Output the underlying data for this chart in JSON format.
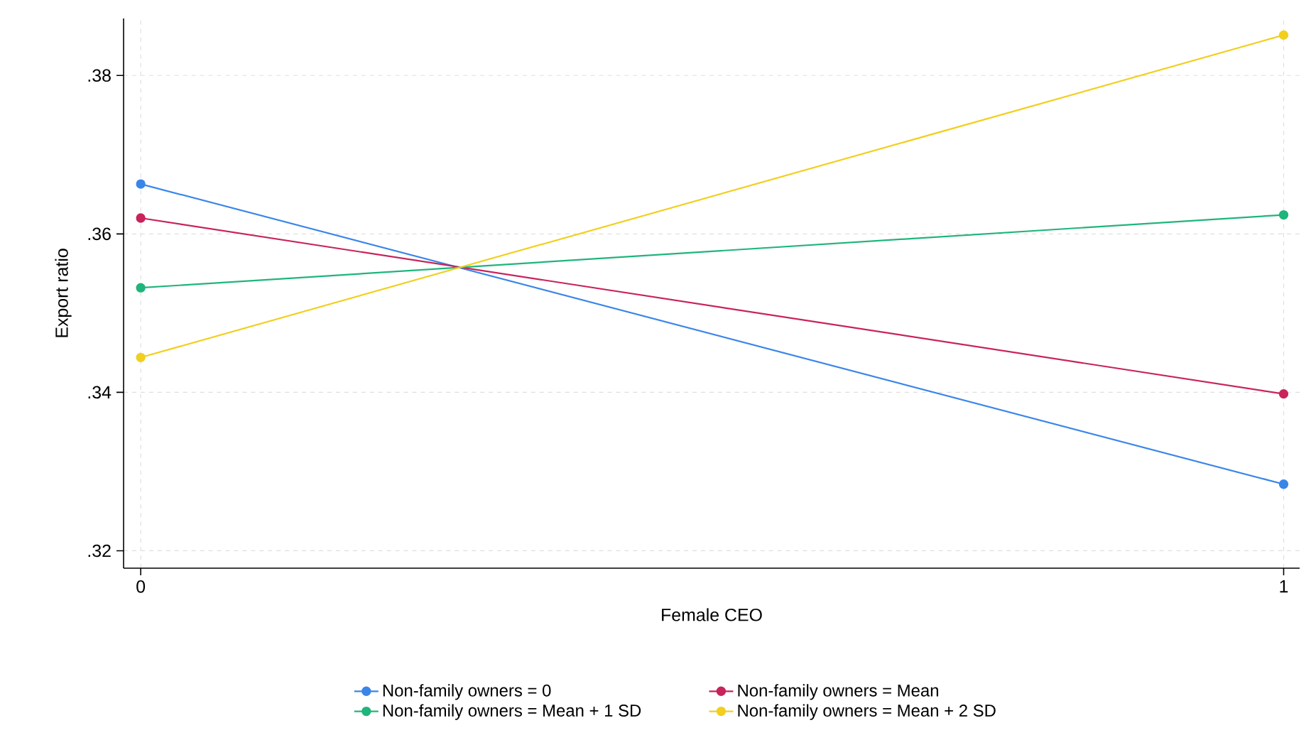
{
  "chart_data": {
    "type": "line",
    "xlabel": "Female CEO",
    "ylabel": "Export ratio",
    "x": [
      0,
      1
    ],
    "series": [
      {
        "name": "Non-family owners = 0",
        "color": "#3a86e8",
        "values": [
          0.3663,
          0.3284
        ]
      },
      {
        "name": "Non-family owners = Mean",
        "color": "#c8235a",
        "values": [
          0.362,
          0.3398
        ]
      },
      {
        "name": "Non-family owners = Mean + 1 SD",
        "color": "#1fb57c",
        "values": [
          0.3532,
          0.3624
        ]
      },
      {
        "name": "Non-family owners = Mean + 2 SD",
        "color": "#f2cf1e",
        "values": [
          0.3444,
          0.3851
        ]
      }
    ],
    "xlim": [
      -0.015,
      1.014
    ],
    "ylim": [
      0.3178,
      0.3872
    ],
    "xticks": [
      0,
      1
    ],
    "yticks": [
      {
        "value": 0.32,
        "label": ".32"
      },
      {
        "value": 0.34,
        "label": ".34"
      },
      {
        "value": 0.36,
        "label": ".36"
      },
      {
        "value": 0.38,
        "label": ".38"
      }
    ],
    "grid": true,
    "legend": "bottom",
    "marker": "circle",
    "line_style": "solid"
  }
}
